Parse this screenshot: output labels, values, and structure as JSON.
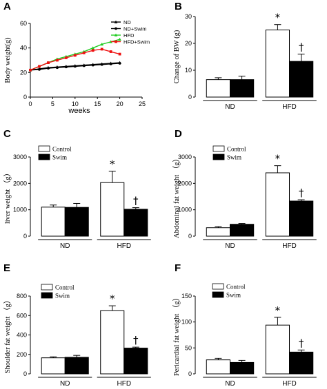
{
  "chart_data": [
    {
      "panel": "A",
      "type": "line",
      "xlabel": "weeks",
      "ylabel": "Body weight(g)",
      "xlim": [
        0,
        25
      ],
      "ylim": [
        0,
        60
      ],
      "xticks": [
        0,
        5,
        10,
        15,
        20,
        25
      ],
      "yticks": [
        0,
        20,
        40,
        60
      ],
      "legend": "top-right",
      "x": [
        0,
        2,
        4,
        6,
        8,
        10,
        12,
        14,
        16,
        18,
        20
      ],
      "series": [
        {
          "name": "ND",
          "color": "#000000",
          "marker": "triangle",
          "values": [
            22,
            23,
            24,
            24.5,
            25,
            25.5,
            26,
            26.5,
            27,
            27.5,
            28
          ]
        },
        {
          "name": "ND+Swim",
          "color": "#000000",
          "marker": "circle",
          "values": [
            22,
            22.5,
            23.5,
            24,
            24.5,
            25,
            25.5,
            26,
            26.5,
            27,
            27.5
          ]
        },
        {
          "name": "HFD",
          "color": "#22cc22",
          "marker": "triangle",
          "values": [
            22,
            25,
            28,
            31,
            33,
            35,
            37,
            40,
            43,
            45,
            47
          ]
        },
        {
          "name": "HFD+Swim",
          "color": "#ee1111",
          "marker": "square",
          "values": [
            22,
            25,
            28,
            30,
            32,
            34,
            36,
            38,
            39,
            37,
            35
          ]
        }
      ]
    },
    {
      "panel": "B",
      "type": "bar",
      "ylabel": "Change of BW (g)",
      "ylim": [
        0,
        30
      ],
      "yticks": [
        0,
        10,
        20,
        30
      ],
      "categories": [
        "ND",
        "HFD"
      ],
      "legend": "",
      "series": [
        {
          "name": "",
          "fill": "#ffffff",
          "values": [
            6.5,
            25
          ],
          "errors": [
            0.7,
            2.0
          ]
        },
        {
          "name": "",
          "fill": "#000000",
          "values": [
            6.5,
            13.3
          ],
          "errors": [
            1.3,
            2.7
          ]
        }
      ],
      "marks": [
        {
          "symbol": "*",
          "cat": 1,
          "series": 0
        },
        {
          "symbol": "†",
          "cat": 1,
          "series": 1
        }
      ]
    },
    {
      "panel": "C",
      "type": "bar",
      "ylabel": "liver weight （g）",
      "ylim": [
        0,
        3000
      ],
      "yticks": [
        0,
        1000,
        2000,
        3000
      ],
      "categories": [
        "ND",
        "HFD"
      ],
      "legend": "top-left",
      "series": [
        {
          "name": "Control",
          "fill": "#ffffff",
          "values": [
            1100,
            2030
          ],
          "errors": [
            80,
            430
          ]
        },
        {
          "name": "Swim",
          "fill": "#000000",
          "values": [
            1090,
            1020
          ],
          "errors": [
            150,
            60
          ]
        }
      ],
      "marks": [
        {
          "symbol": "*",
          "cat": 1,
          "series": 0
        },
        {
          "symbol": "†",
          "cat": 1,
          "series": 1
        }
      ]
    },
    {
      "panel": "D",
      "type": "bar",
      "ylabel": "Abdominal fat weight （g）",
      "ylim": [
        0,
        3000
      ],
      "yticks": [
        0,
        1000,
        2000,
        3000
      ],
      "categories": [
        "ND",
        "HFD"
      ],
      "legend": "top-left",
      "series": [
        {
          "name": "Control",
          "fill": "#ffffff",
          "values": [
            320,
            2400
          ],
          "errors": [
            40,
            270
          ]
        },
        {
          "name": "Swim",
          "fill": "#000000",
          "values": [
            450,
            1330
          ],
          "errors": [
            30,
            50
          ]
        }
      ],
      "marks": [
        {
          "symbol": "*",
          "cat": 1,
          "series": 0
        },
        {
          "symbol": "†",
          "cat": 1,
          "series": 1
        }
      ]
    },
    {
      "panel": "E",
      "type": "bar",
      "ylabel": "Shoulder fat weight （g）",
      "ylim": [
        0,
        800
      ],
      "yticks": [
        0,
        200,
        400,
        600,
        800
      ],
      "categories": [
        "ND",
        "HFD"
      ],
      "legend": "top-left",
      "series": [
        {
          "name": "Control",
          "fill": "#ffffff",
          "values": [
            165,
            650
          ],
          "errors": [
            10,
            50
          ]
        },
        {
          "name": "Swim",
          "fill": "#000000",
          "values": [
            170,
            265
          ],
          "errors": [
            20,
            10
          ]
        }
      ],
      "marks": [
        {
          "symbol": "*",
          "cat": 1,
          "series": 0
        },
        {
          "symbol": "†",
          "cat": 1,
          "series": 1
        }
      ]
    },
    {
      "panel": "F",
      "type": "bar",
      "ylabel": "Pericardial fat weight （g）",
      "ylim": [
        0,
        150
      ],
      "yticks": [
        0,
        50,
        100,
        150
      ],
      "categories": [
        "ND",
        "HFD"
      ],
      "legend": "top-left",
      "series": [
        {
          "name": "Control",
          "fill": "#ffffff",
          "values": [
            27,
            94
          ],
          "errors": [
            3,
            15
          ]
        },
        {
          "name": "Swim",
          "fill": "#000000",
          "values": [
            22,
            42
          ],
          "errors": [
            4,
            4
          ]
        }
      ],
      "marks": [
        {
          "symbol": "*",
          "cat": 1,
          "series": 0
        },
        {
          "symbol": "†",
          "cat": 1,
          "series": 1
        }
      ]
    }
  ]
}
